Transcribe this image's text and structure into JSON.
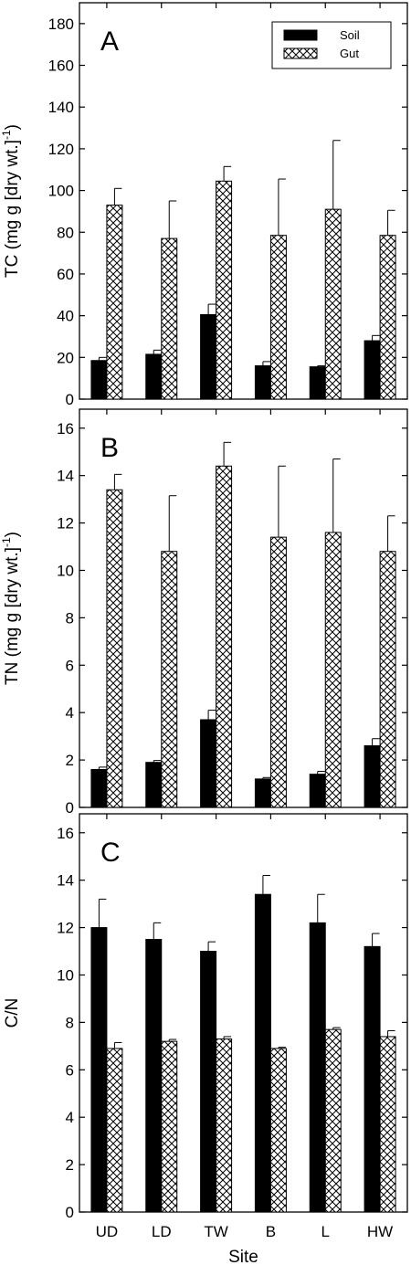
{
  "chart_data": [
    {
      "type": "bar",
      "panel": "A",
      "ylabel_parts": [
        "TC (mg g [dry wt.]",
        "-1",
        ")"
      ],
      "xlabel": "",
      "categories": [
        "UD",
        "LD",
        "TW",
        "B",
        "L",
        "HW"
      ],
      "ylim": [
        0,
        190
      ],
      "yticks": [
        0,
        20,
        40,
        60,
        80,
        100,
        120,
        140,
        160,
        180
      ],
      "legend": {
        "position": "top-right",
        "entries": [
          "Soil",
          "Gut"
        ]
      },
      "series": [
        {
          "name": "Soil",
          "pattern": "solid",
          "values": [
            18.5,
            21.5,
            40.5,
            16,
            15.5,
            28
          ],
          "errors": [
            1.5,
            2,
            5,
            2,
            0.5,
            2.5
          ]
        },
        {
          "name": "Gut",
          "pattern": "crosshatch",
          "values": [
            93,
            77,
            104.5,
            78.5,
            91,
            78.5
          ],
          "errors": [
            8,
            18,
            7,
            27,
            33,
            12
          ]
        }
      ]
    },
    {
      "type": "bar",
      "panel": "B",
      "ylabel_parts": [
        "TN (mg g [dry wt.]",
        "-1",
        ")"
      ],
      "xlabel": "",
      "categories": [
        "UD",
        "LD",
        "TW",
        "B",
        "L",
        "HW"
      ],
      "ylim": [
        0,
        16.8
      ],
      "yticks": [
        0,
        2,
        4,
        6,
        8,
        10,
        12,
        14,
        16
      ],
      "series": [
        {
          "name": "Soil",
          "pattern": "solid",
          "values": [
            1.6,
            1.9,
            3.7,
            1.2,
            1.4,
            2.6
          ],
          "errors": [
            0.1,
            0.08,
            0.4,
            0.06,
            0.12,
            0.3
          ]
        },
        {
          "name": "Gut",
          "pattern": "crosshatch",
          "values": [
            13.4,
            10.8,
            14.4,
            11.4,
            11.6,
            10.8
          ],
          "errors": [
            0.65,
            2.35,
            1.0,
            3.0,
            3.1,
            1.5
          ]
        }
      ]
    },
    {
      "type": "bar",
      "panel": "C",
      "ylabel_parts": [
        "C/N",
        "",
        ""
      ],
      "xlabel": "Site",
      "categories": [
        "UD",
        "LD",
        "TW",
        "B",
        "L",
        "HW"
      ],
      "ylim": [
        0,
        16.8
      ],
      "yticks": [
        0,
        2,
        4,
        6,
        8,
        10,
        12,
        14,
        16
      ],
      "series": [
        {
          "name": "Soil",
          "pattern": "solid",
          "values": [
            12,
            11.5,
            11,
            13.4,
            12.2,
            11.2
          ],
          "errors": [
            1.2,
            0.7,
            0.4,
            0.8,
            1.2,
            0.55
          ]
        },
        {
          "name": "Gut",
          "pattern": "crosshatch",
          "values": [
            6.9,
            7.2,
            7.3,
            6.9,
            7.7,
            7.4
          ],
          "errors": [
            0.25,
            0.08,
            0.1,
            0.05,
            0.08,
            0.25
          ]
        }
      ]
    }
  ]
}
